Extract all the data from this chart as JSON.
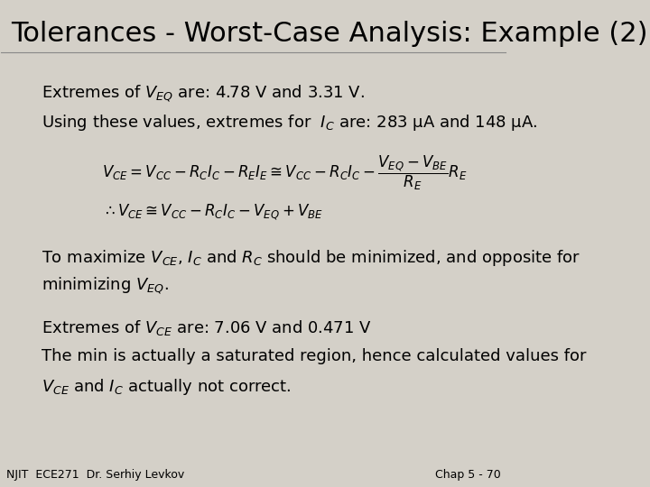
{
  "title": "Tolerances - Worst-Case Analysis: Example (2)",
  "bg_color": "#d4d0c8",
  "title_fontsize": 22,
  "title_color": "#000000",
  "body_fontsize": 13,
  "footer_left": "NJIT  ECE271  Dr. Serhiy Levkov",
  "footer_right": "Chap 5 - 70",
  "footer_fontsize": 9,
  "line1": "Extremes of $V_{EQ}$ are: 4.78 V and 3.31 V.",
  "line2": "Using these values, extremes for  $I_C$ are: 283 μA and 148 μA.",
  "eq1": "$V_{CE}=V_{CC}-R_CI_C-R_EI_E\\cong V_{CC}-R_CI_C-\\dfrac{V_{EQ}-V_{BE}}{R_E}R_E$",
  "eq2": "$\\therefore V_{CE}\\cong V_{CC}-R_CI_C-V_{EQ}+V_{BE}$",
  "line3a": "To maximize $V_{CE}$, $I_C$ and $R_C$ should be minimized, and opposite for",
  "line3b": "minimizing $V_{EQ}$.",
  "line4": "Extremes of $V_{CE}$ are: 7.06 V and 0.471 V",
  "line5": "The min is actually a saturated region, hence calculated values for",
  "line6": "$V_{CE}$ and $I_C$ actually not correct."
}
